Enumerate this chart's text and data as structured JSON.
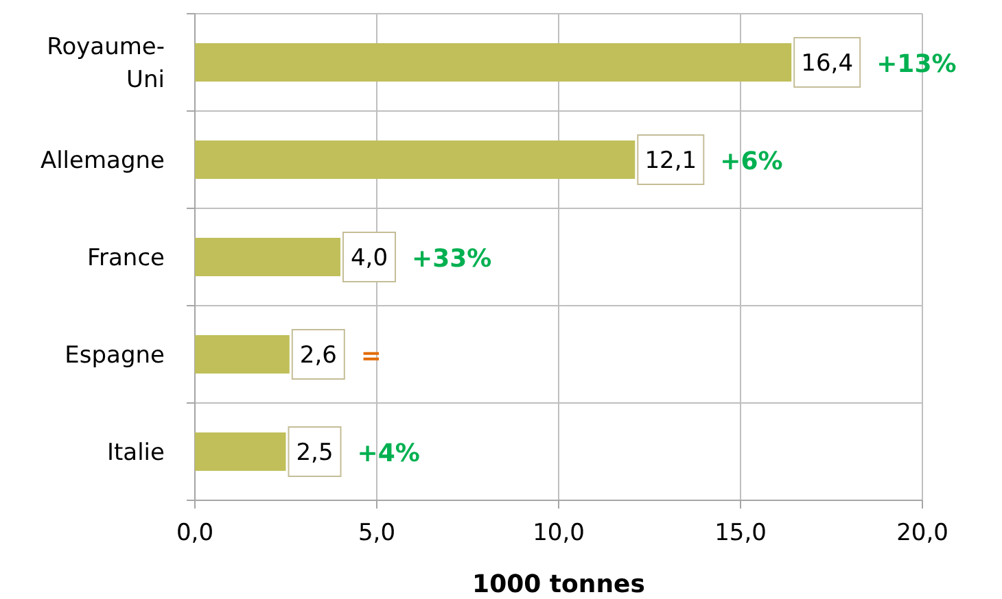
{
  "chart_data": {
    "type": "bar",
    "orientation": "horizontal",
    "xlabel": "1000 tonnes",
    "categories": [
      "Royaume-Uni",
      "Allemagne",
      "France",
      "Espagne",
      "Italie"
    ],
    "values": [
      16.4,
      12.1,
      4.0,
      2.6,
      2.5
    ],
    "value_labels": [
      "16,4",
      "12,1",
      "4,0",
      "2,6",
      "2,5"
    ],
    "color": "#c0bf5a",
    "xlim": [
      0,
      20
    ],
    "xticks": [
      {
        "value": 0,
        "label": "0,0"
      },
      {
        "value": 5,
        "label": "5,0"
      },
      {
        "value": 10,
        "label": "10,0"
      },
      {
        "value": 15,
        "label": "15,0"
      },
      {
        "value": 20,
        "label": "20,0"
      }
    ],
    "grid": true,
    "annotations": [
      "+13%",
      "+6%",
      "+33%",
      "=",
      "+4%"
    ]
  }
}
